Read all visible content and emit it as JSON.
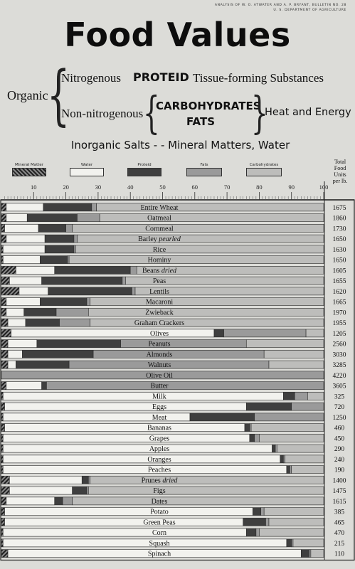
{
  "header": {
    "bulletin_line1": "ANALYSIS OF W. O. ATWATER AND A. P. BRYANT, BULLETIN NO. 28",
    "bulletin_line2": "U. S. DEPARTMENT OF AGRICULTURE",
    "title": "Food Values"
  },
  "classification": {
    "organic": "Organic",
    "nitrogenous": "Nitrogenous",
    "proteid": "PROTEID",
    "tissue": "Tissue-forming Substances",
    "non_nitrogenous": "Non-nitrogenous",
    "carbohydrates": "CARBOHYDRATES",
    "fats": "FATS",
    "heat_energy": "Heat and Energy",
    "inorganic": "Inorganic Salts - - Mineral Matters, Water"
  },
  "colors": {
    "mineral": "#3a3a3a",
    "water": "#f2f2ee",
    "proteid": "#3f3f3f",
    "fats": "#9a9a9a",
    "carbohydrates": "#bdbdbb",
    "background": "#dcdcd8"
  },
  "chart_data": {
    "type": "bar",
    "stacked": true,
    "orientation": "horizontal",
    "legend": [
      "Mineral Matter",
      "Water",
      "Proteid",
      "Fats",
      "Carbohydrates"
    ],
    "totals_header": [
      "Total",
      "Food",
      "Units",
      "per lb."
    ],
    "xticks": [
      "10",
      "20",
      "30",
      "40",
      "50",
      "60",
      "70",
      "80",
      "90",
      "100"
    ],
    "xlim": [
      0,
      100
    ],
    "series_order": [
      "mineral",
      "water",
      "proteid",
      "fats",
      "carbohydrates"
    ],
    "foods": [
      {
        "name": "Entire Wheat",
        "italic": "",
        "total": "1675",
        "mineral": 1.5,
        "water": 11.5,
        "proteid": 15,
        "fats": 1.5,
        "carbohydrates": 70.5
      },
      {
        "name": "Oatmeal",
        "italic": "",
        "total": "1860",
        "mineral": 1.5,
        "water": 6.5,
        "proteid": 15.5,
        "fats": 7,
        "carbohydrates": 69.5
      },
      {
        "name": "Cornmeal",
        "italic": "",
        "total": "1730",
        "mineral": 1,
        "water": 10.5,
        "proteid": 8.5,
        "fats": 2,
        "carbohydrates": 78
      },
      {
        "name": "Barley",
        "italic": "pearled",
        "total": "1650",
        "mineral": 1.5,
        "water": 12,
        "proteid": 9,
        "fats": 1,
        "carbohydrates": 76.5
      },
      {
        "name": "Rice",
        "italic": "",
        "total": "1630",
        "mineral": 0.5,
        "water": 13,
        "proteid": 9,
        "fats": 0.5,
        "carbohydrates": 77
      },
      {
        "name": "Hominy",
        "italic": "",
        "total": "1650",
        "mineral": 0.5,
        "water": 11.5,
        "proteid": 8.5,
        "fats": 0.5,
        "carbohydrates": 79
      },
      {
        "name": "Beans",
        "italic": "dried",
        "total": "1605",
        "mineral": 4.5,
        "water": 12,
        "proteid": 23.5,
        "fats": 2,
        "carbohydrates": 58
      },
      {
        "name": "Peas",
        "italic": "",
        "total": "1655",
        "mineral": 2.5,
        "water": 10,
        "proteid": 25,
        "fats": 1,
        "carbohydrates": 61.5
      },
      {
        "name": "Lentils",
        "italic": "",
        "total": "1620",
        "mineral": 5.5,
        "water": 9,
        "proteid": 26,
        "fats": 1,
        "carbohydrates": 58.5
      },
      {
        "name": "Macaroni",
        "italic": "",
        "total": "1665",
        "mineral": 1.5,
        "water": 10.5,
        "proteid": 14.5,
        "fats": 1,
        "carbohydrates": 72.5
      },
      {
        "name": "Zwieback",
        "italic": "",
        "total": "1970",
        "mineral": 1.5,
        "water": 5.5,
        "proteid": 10,
        "fats": 10,
        "carbohydrates": 73
      },
      {
        "name": "Graham Crackers",
        "italic": "",
        "total": "1955",
        "mineral": 2,
        "water": 5.5,
        "proteid": 10.5,
        "fats": 9.5,
        "carbohydrates": 72.5
      },
      {
        "name": "Olives",
        "italic": "",
        "total": "1205",
        "mineral": 3,
        "water": 63,
        "proteid": 3,
        "fats": 25.5,
        "carbohydrates": 5.5
      },
      {
        "name": "Peanuts",
        "italic": "",
        "total": "2560",
        "mineral": 2,
        "water": 9,
        "proteid": 26,
        "fats": 39,
        "carbohydrates": 24
      },
      {
        "name": "Almonds",
        "italic": "",
        "total": "3030",
        "mineral": 2,
        "water": 4.5,
        "proteid": 22,
        "fats": 53,
        "carbohydrates": 18.5
      },
      {
        "name": "Walnuts",
        "italic": "",
        "total": "3285",
        "mineral": 2,
        "water": 2.5,
        "proteid": 16.5,
        "fats": 62,
        "carbohydrates": 17
      },
      {
        "name": "Olive Oil",
        "italic": "",
        "total": "4220",
        "mineral": 0,
        "water": 0,
        "proteid": 0,
        "fats": 100,
        "carbohydrates": 0
      },
      {
        "name": "Butter",
        "italic": "",
        "total": "3605",
        "mineral": 1.5,
        "water": 11,
        "proteid": 1.5,
        "fats": 86,
        "carbohydrates": 0
      },
      {
        "name": "Milk",
        "italic": "",
        "total": "325",
        "mineral": 0.5,
        "water": 87,
        "proteid": 3.5,
        "fats": 4,
        "carbohydrates": 5
      },
      {
        "name": "Eggs",
        "italic": "",
        "total": "720",
        "mineral": 1,
        "water": 75,
        "proteid": 14,
        "fats": 10,
        "carbohydrates": 0
      },
      {
        "name": "Meat",
        "italic": "",
        "total": "1250",
        "mineral": 0.5,
        "water": 58,
        "proteid": 20,
        "fats": 21.5,
        "carbohydrates": 0
      },
      {
        "name": "Bananas",
        "italic": "",
        "total": "460",
        "mineral": 1,
        "water": 74.5,
        "proteid": 1.5,
        "fats": 0.5,
        "carbohydrates": 22.5
      },
      {
        "name": "Grapes",
        "italic": "",
        "total": "450",
        "mineral": 0.5,
        "water": 76.5,
        "proteid": 1.5,
        "fats": 1.5,
        "carbohydrates": 20
      },
      {
        "name": "Apples",
        "italic": "",
        "total": "290",
        "mineral": 0.5,
        "water": 83.5,
        "proteid": 1,
        "fats": 0.5,
        "carbohydrates": 14.5
      },
      {
        "name": "Oranges",
        "italic": "",
        "total": "240",
        "mineral": 0.5,
        "water": 86,
        "proteid": 1,
        "fats": 0.5,
        "carbohydrates": 12
      },
      {
        "name": "Peaches",
        "italic": "",
        "total": "190",
        "mineral": 0.5,
        "water": 88,
        "proteid": 1,
        "fats": 0.5,
        "carbohydrates": 10
      },
      {
        "name": "Prunes",
        "italic": "dried",
        "total": "1400",
        "mineral": 2.5,
        "water": 22.5,
        "proteid": 2,
        "fats": 0.5,
        "carbohydrates": 72.5
      },
      {
        "name": "Figs",
        "italic": "",
        "total": "1475",
        "mineral": 2.5,
        "water": 19.5,
        "proteid": 4.5,
        "fats": 0.5,
        "carbohydrates": 73
      },
      {
        "name": "Dates",
        "italic": "",
        "total": "1615",
        "mineral": 1.5,
        "water": 15,
        "proteid": 2.5,
        "fats": 3,
        "carbohydrates": 78
      },
      {
        "name": "Potato",
        "italic": "",
        "total": "385",
        "mineral": 1,
        "water": 77,
        "proteid": 2.5,
        "fats": 1,
        "carbohydrates": 18.5
      },
      {
        "name": "Green Peas",
        "italic": "",
        "total": "465",
        "mineral": 1,
        "water": 74,
        "proteid": 7,
        "fats": 1,
        "carbohydrates": 17
      },
      {
        "name": "Corn",
        "italic": "",
        "total": "470",
        "mineral": 0.5,
        "water": 75.5,
        "proteid": 3,
        "fats": 1,
        "carbohydrates": 20
      },
      {
        "name": "Squash",
        "italic": "",
        "total": "215",
        "mineral": 0.5,
        "water": 88,
        "proteid": 1.5,
        "fats": 0.5,
        "carbohydrates": 9.5
      },
      {
        "name": "Spinach",
        "italic": "",
        "total": "110",
        "mineral": 2,
        "water": 91,
        "proteid": 2.5,
        "fats": 0.5,
        "carbohydrates": 4
      }
    ]
  }
}
